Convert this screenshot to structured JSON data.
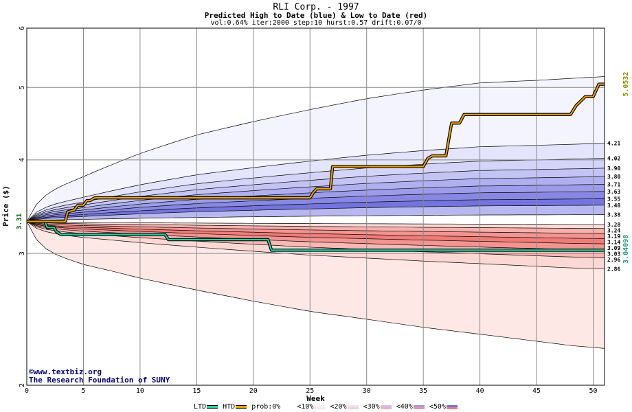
{
  "header": {
    "title": "RLI Corp. - 1997",
    "subtitle": "Predicted High to Date (blue) &  Low to Date (red)",
    "params": "vol:0.64% iter:2000 step:10 hurst:0.57 drift:0.07/0"
  },
  "credits": {
    "line1": "©www.textbiz.org",
    "line2": "The Research Foundation of SUNY"
  },
  "legend": {
    "ltd": "LTD",
    "htd": "HTD",
    "prob": "prob:0%",
    "b10": "<10%",
    "b20": "<20%",
    "b30": "<30%",
    "b40": "<40%",
    "b50": "<50%"
  },
  "colors": {
    "htd": "#e8a000",
    "ltd": "#20d0a0",
    "blue_bands": [
      "#f4f4fe",
      "#e4e4fc",
      "#c4c4f4",
      "#9c9cea",
      "#7474de"
    ],
    "red_bands": [
      "#fde8e6",
      "#fcd0cc",
      "#f8b0ac",
      "#f49490",
      "#f07c78"
    ],
    "right_value_top": "#909000",
    "right_value_bottom": "#20a080",
    "start_value": "#006000"
  },
  "chart_data": {
    "type": "area",
    "title": "RLI Corp. - 1997",
    "subtitle": "Predicted High to Date (blue) &  Low to Date (red)",
    "xlabel": "Week",
    "ylabel": "Price ($)",
    "xlim": [
      0,
      51
    ],
    "ylim": [
      2,
      6
    ],
    "log_y": true,
    "x_ticks": [
      0,
      5,
      10,
      15,
      20,
      25,
      30,
      35,
      40,
      45,
      50
    ],
    "y_ticks": [
      2,
      3,
      4,
      5,
      6
    ],
    "grid": true,
    "start_value": "3.31",
    "right_value_top": "5.0532",
    "right_value_bottom": "3.04098",
    "band_labels": [
      "4.21",
      "4.02",
      "3.90",
      "3.80",
      "3.71",
      "3.63",
      "3.55",
      "3.48",
      "3.38",
      "3.28",
      "3.24",
      "3.19",
      "3.14",
      "3.09",
      "3.03",
      "2.96",
      "2.86"
    ],
    "envelope": {
      "x": [
        0,
        1,
        2,
        3,
        5,
        8,
        10,
        15,
        20,
        25,
        30,
        35,
        40,
        45,
        48,
        51
      ],
      "high": [
        3.31,
        3.52,
        3.62,
        3.69,
        3.8,
        3.97,
        4.08,
        4.32,
        4.5,
        4.67,
        4.83,
        4.96,
        5.07,
        5.11,
        5.14,
        5.17
      ],
      "low": [
        3.31,
        3.1,
        3.02,
        2.97,
        2.9,
        2.83,
        2.78,
        2.68,
        2.59,
        2.51,
        2.45,
        2.39,
        2.34,
        2.29,
        2.26,
        2.24
      ]
    },
    "htd_series": {
      "name": "HTD",
      "x": [
        0,
        3.4,
        3.6,
        4.2,
        4.5,
        5.0,
        5.3,
        5.6,
        6.0,
        25.0,
        25.3,
        25.6,
        26.8,
        27.0,
        35.0,
        35.4,
        35.8,
        37.0,
        37.5,
        38.2,
        38.6,
        48.0,
        48.5,
        49.3,
        50.0,
        50.5,
        51
      ],
      "y": [
        3.31,
        3.31,
        3.41,
        3.43,
        3.48,
        3.48,
        3.53,
        3.53,
        3.56,
        3.56,
        3.62,
        3.66,
        3.66,
        3.92,
        3.92,
        4.02,
        4.05,
        4.05,
        4.48,
        4.48,
        4.6,
        4.6,
        4.73,
        4.86,
        4.86,
        5.05,
        5.05
      ]
    },
    "ltd_series": {
      "name": "LTD",
      "x": [
        0,
        1.6,
        1.8,
        2.4,
        2.6,
        3.0,
        12.2,
        12.5,
        21.3,
        21.6,
        51
      ],
      "y": [
        3.31,
        3.31,
        3.25,
        3.25,
        3.21,
        3.18,
        3.18,
        3.13,
        3.13,
        3.03,
        3.03
      ]
    }
  }
}
